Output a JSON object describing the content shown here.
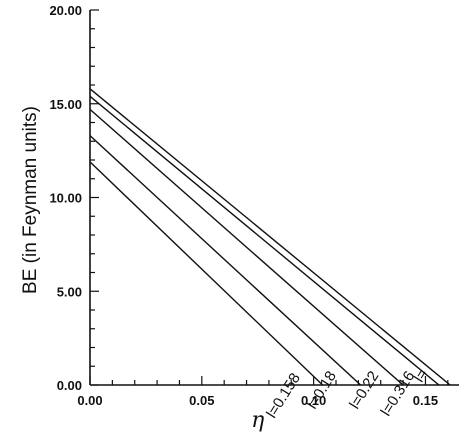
{
  "chart_data": {
    "type": "line",
    "title": "",
    "xlabel": "η",
    "ylabel": "BE (in Feynman units)",
    "xlim": [
      0.0,
      0.165
    ],
    "ylim": [
      0.0,
      20.0
    ],
    "x_major_ticks": [
      0.0,
      0.05,
      0.1,
      0.15
    ],
    "x_tick_labels": [
      "0.00",
      "0.05",
      "0.10",
      "0.15"
    ],
    "y_major_ticks": [
      0.0,
      5.0,
      10.0,
      15.0,
      20.0
    ],
    "y_tick_labels": [
      "0.00",
      "5.00",
      "10.00",
      "15.00",
      "20.00"
    ],
    "grid": false,
    "legend": "none",
    "series": [
      {
        "label": "l=0.158",
        "x": [
          0.0,
          0.104
        ],
        "y": [
          11.9,
          0.0
        ]
      },
      {
        "label": "l=0.18",
        "x": [
          0.0,
          0.121
        ],
        "y": [
          13.3,
          0.0
        ]
      },
      {
        "label": "l=0.22",
        "x": [
          0.0,
          0.14
        ],
        "y": [
          14.7,
          0.0
        ]
      },
      {
        "label": "l=0.316",
        "x": [
          0.0,
          0.156
        ],
        "y": [
          15.4,
          0.0
        ]
      },
      {
        "label": "l=",
        "x": [
          0.0,
          0.161
        ],
        "y": [
          15.8,
          0.0
        ]
      }
    ]
  }
}
